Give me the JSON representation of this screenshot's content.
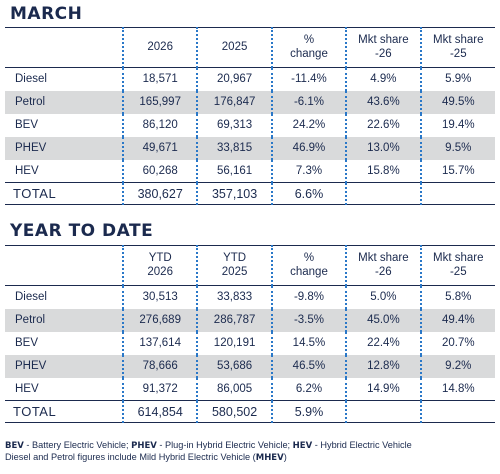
{
  "march": {
    "title": "MARCH",
    "headers": [
      "",
      "2026",
      "2025",
      "% change",
      "Mkt share -26",
      "Mkt share -25"
    ],
    "rows": [
      [
        "Diesel",
        "18,571",
        "20,967",
        "-11.4%",
        "4.9%",
        "5.9%"
      ],
      [
        "Petrol",
        "165,997",
        "176,847",
        "-6.1%",
        "43.6%",
        "49.5%"
      ],
      [
        "BEV",
        "86,120",
        "69,313",
        "24.2%",
        "22.6%",
        "19.4%"
      ],
      [
        "PHEV",
        "49,671",
        "33,815",
        "46.9%",
        "13.0%",
        "9.5%"
      ],
      [
        "HEV",
        "60,268",
        "56,161",
        "7.3%",
        "15.8%",
        "15.7%"
      ]
    ],
    "total": [
      "TOTAL",
      "380,627",
      "357,103",
      "6.6%",
      "",
      ""
    ]
  },
  "ytd": {
    "title": "YEAR TO DATE",
    "headers": [
      "",
      "YTD 2026",
      "YTD 2025",
      "% change",
      "Mkt share -26",
      "Mkt share -25"
    ],
    "rows": [
      [
        "Diesel",
        "30,513",
        "33,833",
        "-9.8%",
        "5.0%",
        "5.8%"
      ],
      [
        "Petrol",
        "276,689",
        "286,787",
        "-3.5%",
        "45.0%",
        "49.4%"
      ],
      [
        "BEV",
        "137,614",
        "120,191",
        "14.5%",
        "22.4%",
        "20.7%"
      ],
      [
        "PHEV",
        "78,666",
        "53,686",
        "46.5%",
        "12.8%",
        "9.2%"
      ],
      [
        "HEV",
        "91,372",
        "86,005",
        "6.2%",
        "14.9%",
        "14.8%"
      ]
    ],
    "total": [
      "TOTAL",
      "614,854",
      "580,502",
      "5.9%",
      "",
      ""
    ]
  },
  "footnote": {
    "bev_abbr": "BEV",
    "bev_text": " - Battery Electric Vehicle; ",
    "phev_abbr": "PHEV",
    "phev_text": " - Plug-in Hybrid Electric Vehicle; ",
    "hev_abbr": "HEV",
    "hev_text": " - Hybrid Electric Vehicle",
    "line2_text": "Diesel and Petrol figures include Mild Hybrid Electric Vehicle (",
    "mhev_abbr": "MHEV",
    "line2_end": ")"
  },
  "colors": {
    "navy": "#1b2a4e",
    "shade": "#d9dadb",
    "dots": "#2a78c8"
  }
}
